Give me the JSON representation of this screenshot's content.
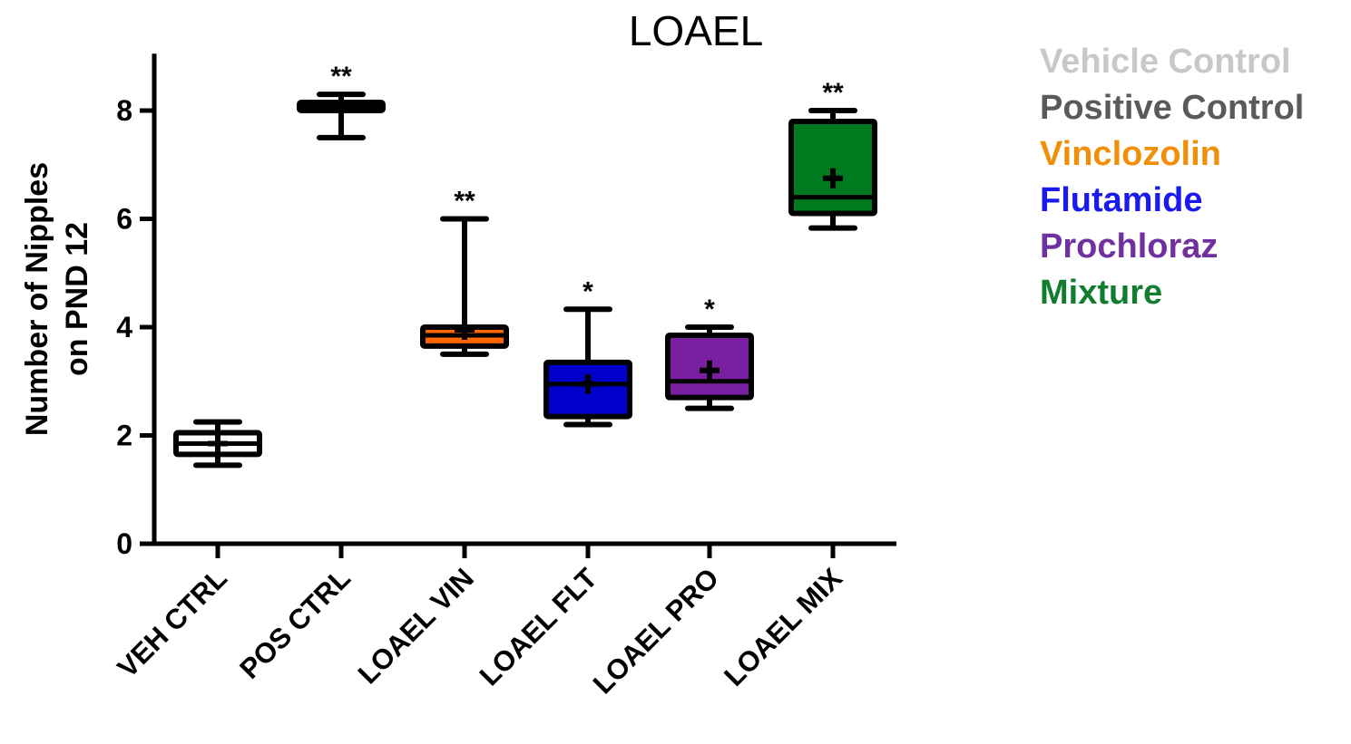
{
  "chart_data": {
    "type": "box",
    "title": "LOAEL",
    "ylabel_line1": "Number of Nipples",
    "ylabel_line2": "on PND 12",
    "xlabel": "",
    "ylim": [
      0,
      9
    ],
    "yticks": [
      0,
      2,
      4,
      6,
      8
    ],
    "legend_position": "top-right",
    "groups": [
      {
        "category": "VEH CTRL",
        "whisker_low": 1.45,
        "q1": 1.65,
        "median": 1.85,
        "q3": 2.05,
        "whisker_high": 2.25,
        "mean": 1.85,
        "color": "#ffffff",
        "significance": ""
      },
      {
        "category": "POS CTRL",
        "whisker_low": 7.5,
        "q1": 8.0,
        "median": 8.05,
        "q3": 8.15,
        "whisker_high": 8.3,
        "mean": 8.05,
        "color": "#000000",
        "significance": "**"
      },
      {
        "category": "LOAEL VIN",
        "whisker_low": 3.5,
        "q1": 3.65,
        "median": 3.85,
        "q3": 4.0,
        "whisker_high": 6.0,
        "mean": 3.95,
        "color": "#ff6600",
        "significance": "**"
      },
      {
        "category": "LOAEL FLT",
        "whisker_low": 2.2,
        "q1": 2.35,
        "median": 2.95,
        "q3": 3.35,
        "whisker_high": 4.33,
        "mean": 2.95,
        "color": "#0000cc",
        "significance": "*"
      },
      {
        "category": "LOAEL PRO",
        "whisker_low": 2.5,
        "q1": 2.7,
        "median": 3.0,
        "q3": 3.85,
        "whisker_high": 4.0,
        "mean": 3.2,
        "color": "#7b1fa2",
        "significance": "*"
      },
      {
        "category": "LOAEL MIX",
        "whisker_low": 5.83,
        "q1": 6.1,
        "median": 6.4,
        "q3": 7.8,
        "whisker_high": 8.0,
        "mean": 6.75,
        "color": "#007a1f",
        "significance": "**"
      }
    ],
    "legend": [
      {
        "label": "Vehicle Control",
        "color": "#c8c8c8"
      },
      {
        "label": "Positive Control",
        "color": "#5a5a5a"
      },
      {
        "label": "Vinclozolin",
        "color": "#f0900a"
      },
      {
        "label": "Flutamide",
        "color": "#1a1aee"
      },
      {
        "label": "Prochloraz",
        "color": "#7030a0"
      },
      {
        "label": "Mixture",
        "color": "#127d2e"
      }
    ]
  }
}
